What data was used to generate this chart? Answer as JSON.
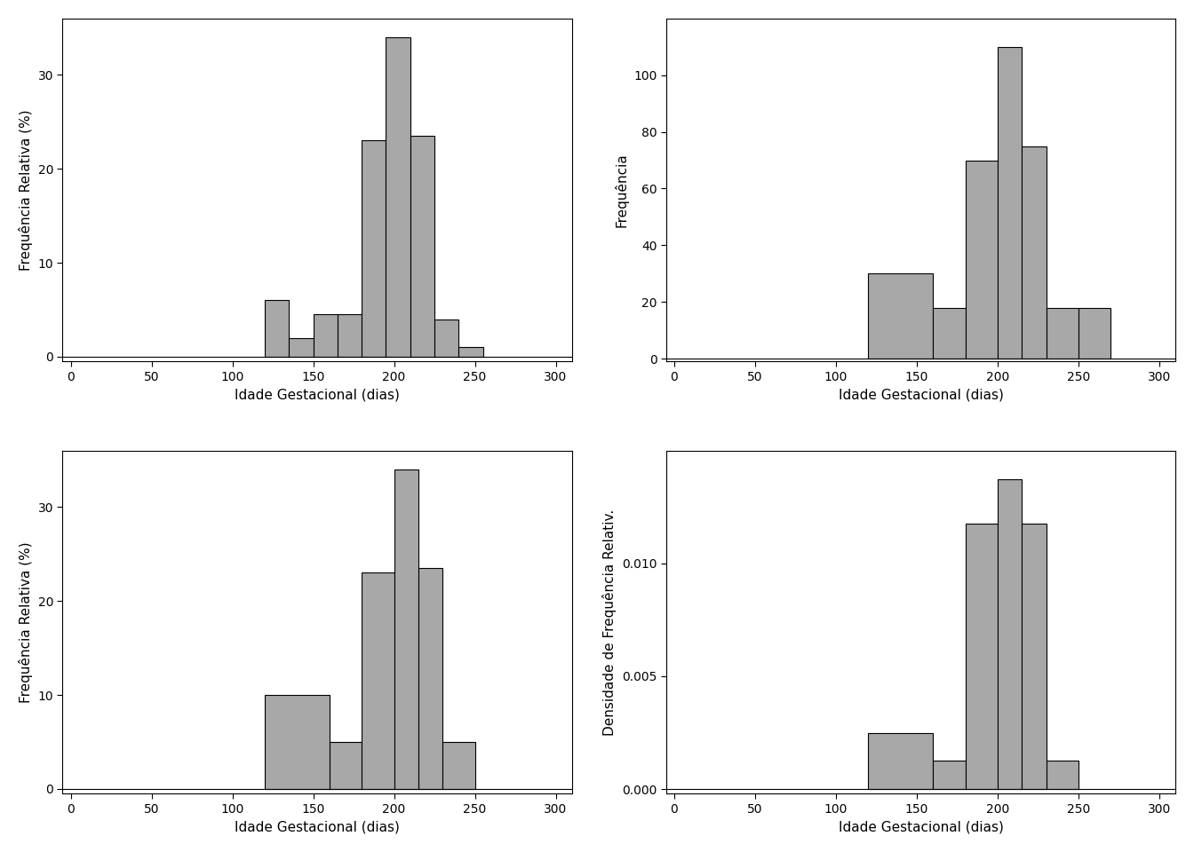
{
  "background_color": "#ffffff",
  "bar_color": "#a8a8a8",
  "bar_edgecolor": "#000000",
  "xlabel": "Idade Gestacional (dias)",
  "xlim": [
    -5,
    310
  ],
  "xticks": [
    0,
    50,
    100,
    150,
    200,
    250,
    300
  ],
  "plot1": {
    "ylabel": "Frequência Relativa (%)",
    "ylim": [
      -0.5,
      36
    ],
    "yticks": [
      0,
      10,
      20,
      30
    ],
    "bins": [
      120,
      135,
      150,
      165,
      180,
      195,
      210,
      225,
      240,
      255,
      270
    ],
    "heights": [
      6.0,
      2.0,
      4.5,
      4.5,
      23.0,
      34.0,
      23.5,
      4.0,
      1.0,
      0.0
    ]
  },
  "plot2": {
    "ylabel": "Frequência",
    "ylim": [
      -1,
      120
    ],
    "yticks": [
      0,
      20,
      40,
      60,
      80,
      100
    ],
    "bins": [
      120,
      160,
      180,
      200,
      215,
      230,
      250,
      270
    ],
    "heights": [
      30,
      18,
      70,
      110,
      75,
      18,
      18
    ]
  },
  "plot3": {
    "ylabel": "Frequência Relativa (%)",
    "ylim": [
      -0.5,
      36
    ],
    "yticks": [
      0,
      10,
      20,
      30
    ],
    "bins": [
      120,
      160,
      180,
      200,
      215,
      230,
      250,
      270
    ],
    "heights": [
      10.0,
      5.0,
      23.0,
      34.0,
      23.5,
      5.0,
      0.0
    ]
  },
  "plot4": {
    "ylabel": "Densidade de Frequência Relativ.",
    "ylim": [
      -0.0002,
      0.015
    ],
    "yticks": [
      0.0,
      0.005,
      0.01
    ],
    "bins": [
      120,
      160,
      180,
      200,
      215,
      230,
      250,
      270
    ],
    "heights": [
      0.0025,
      0.00125,
      0.01175,
      0.01375,
      0.01175,
      0.00125,
      0.0
    ]
  }
}
